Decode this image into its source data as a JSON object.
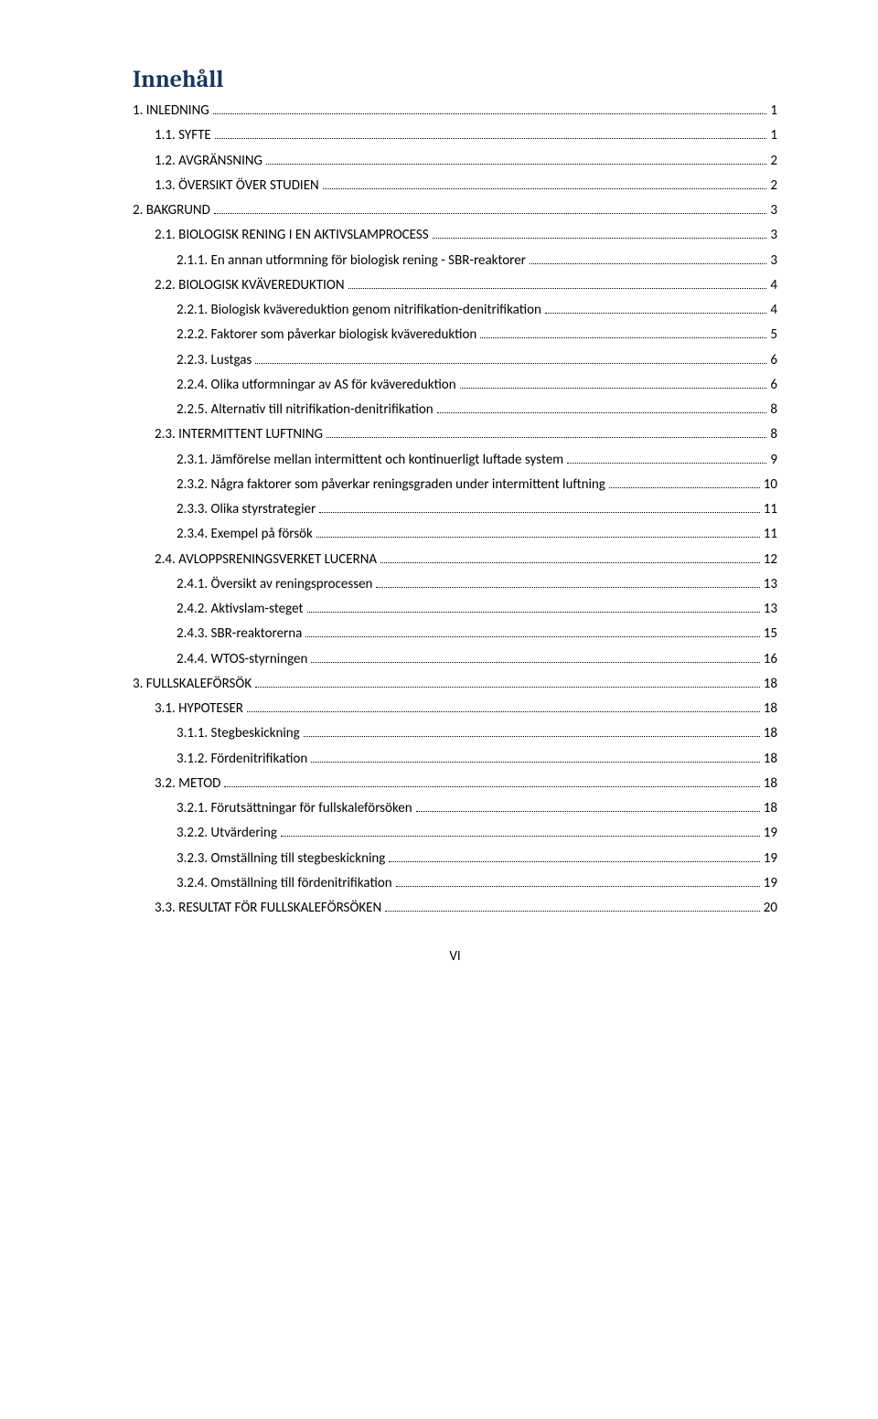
{
  "title": "Innehåll",
  "page_number": "VI",
  "toc": [
    {
      "level": 1,
      "label": "1. INLEDNING",
      "page": "1"
    },
    {
      "level": 2,
      "label": "1.1. SYFTE",
      "page": "1"
    },
    {
      "level": 2,
      "label": "1.2. AVGRÄNSNING",
      "page": "2"
    },
    {
      "level": 2,
      "label": "1.3. ÖVERSIKT ÖVER STUDIEN",
      "page": "2"
    },
    {
      "level": 1,
      "label": "2. BAKGRUND",
      "page": "3"
    },
    {
      "level": 2,
      "label": "2.1. BIOLOGISK RENING I EN AKTIVSLAMPROCESS",
      "page": "3"
    },
    {
      "level": 3,
      "label": "2.1.1. En annan utformning för biologisk rening - SBR-reaktorer",
      "page": "3"
    },
    {
      "level": 2,
      "label": "2.2. BIOLOGISK KVÄVEREDUKTION",
      "page": "4"
    },
    {
      "level": 3,
      "label": "2.2.1. Biologisk kvävereduktion genom nitrifikation-denitrifikation",
      "page": "4"
    },
    {
      "level": 3,
      "label": "2.2.2. Faktorer som påverkar biologisk kvävereduktion",
      "page": "5"
    },
    {
      "level": 3,
      "label": "2.2.3. Lustgas",
      "page": "6"
    },
    {
      "level": 3,
      "label": "2.2.4. Olika utformningar av AS för kvävereduktion",
      "page": "6"
    },
    {
      "level": 3,
      "label": "2.2.5. Alternativ till nitrifikation-denitrifikation",
      "page": "8"
    },
    {
      "level": 2,
      "label": "2.3. INTERMITTENT LUFTNING",
      "page": "8"
    },
    {
      "level": 3,
      "label": "2.3.1. Jämförelse mellan intermittent och kontinuerligt luftade system",
      "page": "9"
    },
    {
      "level": 3,
      "label": "2.3.2. Några faktorer som påverkar reningsgraden under intermittent luftning",
      "page": "10"
    },
    {
      "level": 3,
      "label": "2.3.3. Olika styrstrategier",
      "page": "11"
    },
    {
      "level": 3,
      "label": "2.3.4. Exempel på försök",
      "page": "11"
    },
    {
      "level": 2,
      "label": "2.4. AVLOPPSRENINGSVERKET LUCERNA",
      "page": "12"
    },
    {
      "level": 3,
      "label": "2.4.1. Översikt av reningsprocessen",
      "page": "13"
    },
    {
      "level": 3,
      "label": "2.4.2. Aktivslam-steget",
      "page": "13"
    },
    {
      "level": 3,
      "label": "2.4.3. SBR-reaktorerna",
      "page": "15"
    },
    {
      "level": 3,
      "label": "2.4.4. WTOS-styrningen",
      "page": "16"
    },
    {
      "level": 1,
      "label": "3. FULLSKALEFÖRSÖK",
      "page": "18"
    },
    {
      "level": 2,
      "label": "3.1. HYPOTESER",
      "page": "18"
    },
    {
      "level": 3,
      "label": "3.1.1. Stegbeskickning",
      "page": "18"
    },
    {
      "level": 3,
      "label": "3.1.2. Fördenitrifikation",
      "page": "18"
    },
    {
      "level": 2,
      "label": "3.2. METOD",
      "page": "18"
    },
    {
      "level": 3,
      "label": "3.2.1. Förutsättningar för fullskaleförsöken",
      "page": "18"
    },
    {
      "level": 3,
      "label": "3.2.2. Utvärdering",
      "page": "19"
    },
    {
      "level": 3,
      "label": "3.2.3. Omställning till stegbeskickning",
      "page": "19"
    },
    {
      "level": 3,
      "label": "3.2.4. Omställning till fördenitrifikation",
      "page": "19"
    },
    {
      "level": 2,
      "label": "3.3. RESULTAT FÖR FULLSKALEFÖRSÖKEN",
      "page": "20"
    }
  ]
}
